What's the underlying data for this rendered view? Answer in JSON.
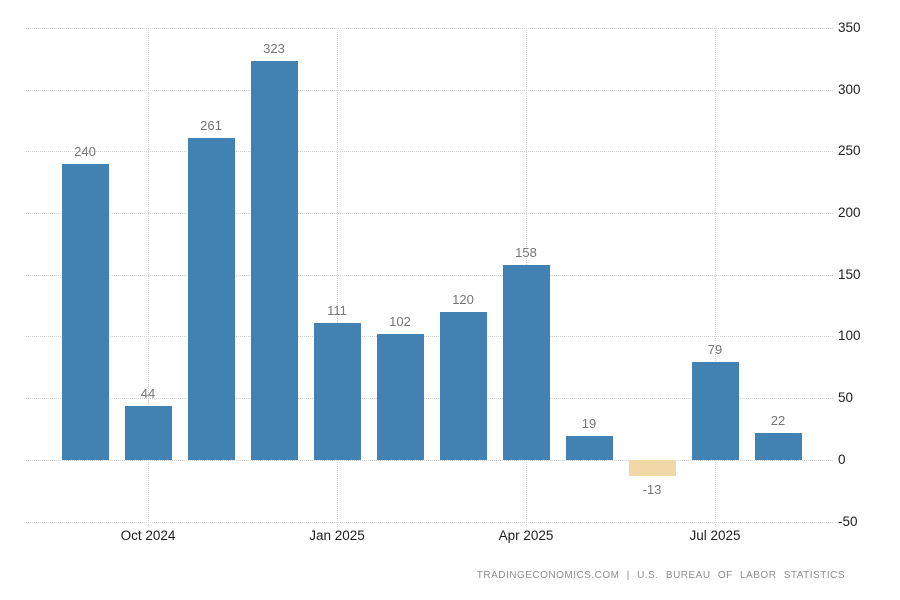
{
  "chart_data": {
    "type": "bar",
    "title": "",
    "xlabel": "",
    "ylabel": "",
    "values": [
      240,
      44,
      261,
      323,
      111,
      102,
      120,
      158,
      19,
      -13,
      79,
      22
    ],
    "data_labels": [
      "240",
      "44",
      "261",
      "323",
      "111",
      "102",
      "120",
      "158",
      "19",
      "-13",
      "79",
      "22"
    ],
    "x_tick_labels": [
      "Oct 2024",
      "Jan 2025",
      "Apr 2025",
      "Jul 2025"
    ],
    "x_tick_bar_indices": [
      1,
      4,
      7,
      10
    ],
    "y_tick_labels": [
      "350",
      "300",
      "250",
      "200",
      "150",
      "100",
      "50",
      "0",
      "-50"
    ],
    "ylim": [
      -50,
      350
    ],
    "grid": "dotted, horizontal every 50 units and vertical at labeled months",
    "legend": "none",
    "colors": {
      "positive_bar": "#4282b2",
      "negative_bar": "#f0d9a7",
      "data_label": "#757575",
      "axis_label": "#1f1f1f",
      "gridline": "#d4d4d4",
      "background": "#ffffff"
    }
  },
  "footer": {
    "text": "TRADINGECONOMICS.COM | U.S. BUREAU OF LABOR STATISTICS"
  }
}
